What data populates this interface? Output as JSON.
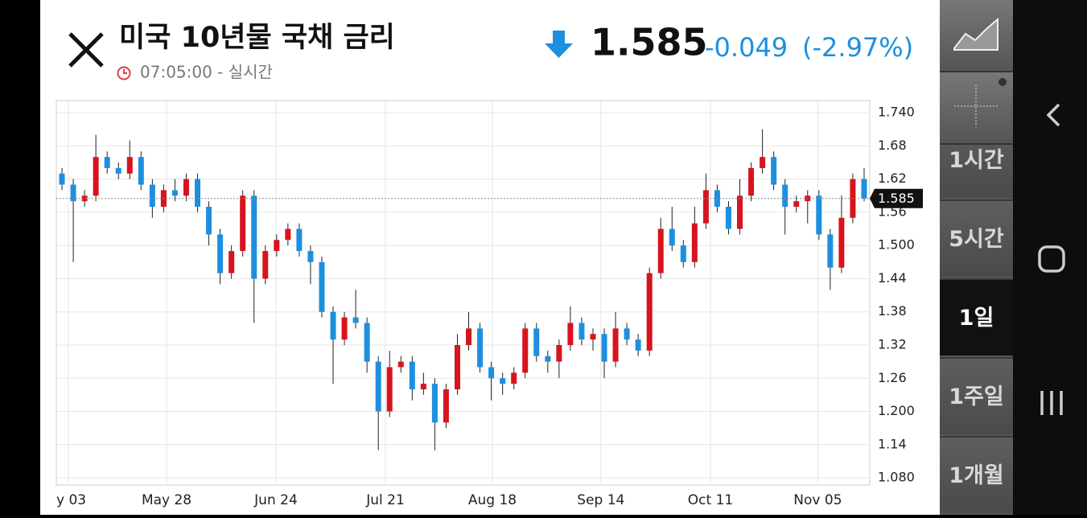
{
  "header": {
    "title": "미국 10년물 국채 금리",
    "time": "07:05:00 - 실시간",
    "price": "1.585",
    "change": "-0.049",
    "change_pct": "(-2.97%)"
  },
  "sidebar": {
    "intervals": [
      "1시간",
      "5시간",
      "1일",
      "1주일",
      "1개월"
    ],
    "selected_index": 2
  },
  "chart_data": {
    "type": "candlestick",
    "up_color": "#d7141e",
    "down_color": "#1e8fe0",
    "grid": true,
    "xlim": [
      0,
      72
    ],
    "xticks": [
      {
        "value": 1.07,
        "label": "y 03"
      },
      {
        "value": 9.76,
        "label": "May 28"
      },
      {
        "value": 19.44,
        "label": "Jun 24"
      },
      {
        "value": 29.13,
        "label": "Jul 21"
      },
      {
        "value": 38.6,
        "label": "Aug 18"
      },
      {
        "value": 48.2,
        "label": "Sep 14"
      },
      {
        "value": 57.9,
        "label": "Oct 11"
      },
      {
        "value": 67.4,
        "label": "Nov 05"
      }
    ],
    "ylim": [
      1.067,
      1.762
    ],
    "yticks": [
      {
        "value": 1.08,
        "label": "1.080"
      },
      1.14,
      {
        "value": 1.2,
        "label": "1.200"
      },
      1.26,
      1.32,
      1.38,
      1.44,
      {
        "value": 1.5,
        "label": "1.500"
      },
      1.56,
      1.62,
      1.68,
      {
        "value": 1.74,
        "label": "1.740"
      }
    ],
    "open": [
      1.63,
      1.61,
      1.58,
      1.59,
      1.66,
      1.64,
      1.63,
      1.66,
      1.61,
      1.57,
      1.6,
      1.59,
      1.62,
      1.57,
      1.52,
      1.45,
      1.49,
      1.59,
      1.44,
      1.49,
      1.51,
      1.53,
      1.49,
      1.47,
      1.38,
      1.33,
      1.37,
      1.36,
      1.29,
      1.2,
      1.28,
      1.29,
      1.24,
      1.25,
      1.18,
      1.24,
      1.32,
      1.35,
      1.28,
      1.26,
      1.25,
      1.27,
      1.35,
      1.3,
      1.29,
      1.32,
      1.36,
      1.33,
      1.34,
      1.29,
      1.35,
      1.33,
      1.31,
      1.45,
      1.53,
      1.5,
      1.47,
      1.54,
      1.6,
      1.57,
      1.53,
      1.59,
      1.64,
      1.66,
      1.61,
      1.57,
      1.58,
      1.59,
      1.52,
      1.46,
      1.55,
      1.62
    ],
    "high": [
      1.64,
      1.62,
      1.6,
      1.7,
      1.67,
      1.65,
      1.69,
      1.67,
      1.62,
      1.61,
      1.62,
      1.63,
      1.63,
      1.58,
      1.53,
      1.5,
      1.6,
      1.6,
      1.5,
      1.52,
      1.54,
      1.54,
      1.5,
      1.48,
      1.39,
      1.38,
      1.42,
      1.37,
      1.3,
      1.31,
      1.3,
      1.3,
      1.27,
      1.26,
      1.25,
      1.34,
      1.38,
      1.36,
      1.29,
      1.27,
      1.28,
      1.36,
      1.36,
      1.31,
      1.33,
      1.39,
      1.37,
      1.35,
      1.35,
      1.38,
      1.36,
      1.34,
      1.46,
      1.55,
      1.57,
      1.51,
      1.57,
      1.63,
      1.61,
      1.58,
      1.62,
      1.65,
      1.71,
      1.67,
      1.62,
      1.59,
      1.6,
      1.6,
      1.53,
      1.59,
      1.63,
      1.64
    ],
    "low": [
      1.6,
      1.47,
      1.57,
      1.58,
      1.63,
      1.62,
      1.62,
      1.6,
      1.55,
      1.56,
      1.58,
      1.58,
      1.56,
      1.5,
      1.43,
      1.44,
      1.48,
      1.36,
      1.43,
      1.48,
      1.5,
      1.48,
      1.43,
      1.37,
      1.25,
      1.32,
      1.35,
      1.27,
      1.13,
      1.19,
      1.27,
      1.22,
      1.23,
      1.13,
      1.17,
      1.23,
      1.31,
      1.27,
      1.22,
      1.23,
      1.24,
      1.26,
      1.29,
      1.27,
      1.26,
      1.31,
      1.32,
      1.31,
      1.26,
      1.28,
      1.32,
      1.3,
      1.3,
      1.44,
      1.49,
      1.46,
      1.46,
      1.53,
      1.56,
      1.52,
      1.52,
      1.58,
      1.63,
      1.6,
      1.52,
      1.56,
      1.54,
      1.51,
      1.42,
      1.45,
      1.54,
      1.58
    ],
    "close": [
      1.61,
      1.58,
      1.59,
      1.66,
      1.64,
      1.63,
      1.66,
      1.61,
      1.57,
      1.6,
      1.59,
      1.62,
      1.57,
      1.52,
      1.45,
      1.49,
      1.59,
      1.44,
      1.49,
      1.51,
      1.53,
      1.49,
      1.47,
      1.38,
      1.33,
      1.37,
      1.36,
      1.29,
      1.2,
      1.28,
      1.29,
      1.24,
      1.25,
      1.18,
      1.24,
      1.32,
      1.35,
      1.28,
      1.26,
      1.25,
      1.27,
      1.35,
      1.3,
      1.29,
      1.32,
      1.36,
      1.33,
      1.34,
      1.29,
      1.35,
      1.33,
      1.31,
      1.45,
      1.53,
      1.5,
      1.47,
      1.54,
      1.6,
      1.57,
      1.53,
      1.59,
      1.64,
      1.66,
      1.61,
      1.57,
      1.58,
      1.59,
      1.52,
      1.46,
      1.55,
      1.62,
      1.585
    ]
  }
}
